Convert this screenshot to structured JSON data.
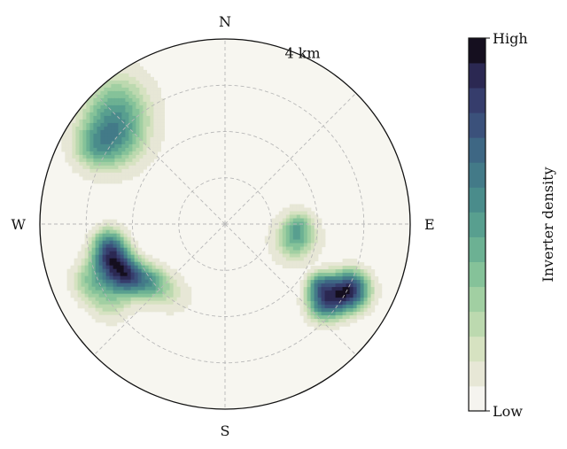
{
  "chart_data": {
    "type": "heatmap",
    "projection": "polar",
    "title": "",
    "compass": {
      "north": "N",
      "east": "E",
      "south": "S",
      "west": "W"
    },
    "radial_label": "4 km",
    "radial_max_km": 4,
    "radial_rings_km": [
      1,
      2,
      3,
      4
    ],
    "angular_grid_deg": [
      0,
      45,
      90,
      135,
      180,
      225,
      270,
      315
    ],
    "grid": true,
    "colorbar": {
      "label": "Inverter density",
      "high_label": "High",
      "low_label": "Low",
      "levels": 15,
      "colors": [
        "#f5f4ef",
        "#e7e7d6",
        "#d6e2c1",
        "#bcd9af",
        "#a1cfa2",
        "#85c299",
        "#6cb193",
        "#589f8f",
        "#4a8c8b",
        "#437a88",
        "#3e6784",
        "#3b517b",
        "#363d6c",
        "#2b2852",
        "#150f1f"
      ]
    },
    "background": "#f7f6f0",
    "hotspots": [
      {
        "name": "north-west",
        "bearing_deg": 315,
        "distance_km": 3.25,
        "peak_level": 9,
        "lobes": [
          {
            "bearing_deg": 318,
            "distance_km": 3.5,
            "spread_km": 0.55,
            "weight": 0.85
          },
          {
            "bearing_deg": 308,
            "distance_km": 3.0,
            "spread_km": 0.5,
            "weight": 0.95
          },
          {
            "bearing_deg": 300,
            "distance_km": 3.3,
            "spread_km": 0.35,
            "weight": 0.6
          }
        ]
      },
      {
        "name": "east",
        "bearing_deg": 98,
        "distance_km": 1.6,
        "peak_level": 7,
        "lobes": [
          {
            "bearing_deg": 103,
            "distance_km": 1.55,
            "spread_km": 0.32,
            "weight": 0.7
          },
          {
            "bearing_deg": 90,
            "distance_km": 1.6,
            "spread_km": 0.22,
            "weight": 0.4
          }
        ]
      },
      {
        "name": "south-east",
        "bearing_deg": 122,
        "distance_km": 2.9,
        "peak_level": 14,
        "lobes": [
          {
            "bearing_deg": 118,
            "distance_km": 3.05,
            "spread_km": 0.33,
            "weight": 1.0
          },
          {
            "bearing_deg": 129,
            "distance_km": 2.75,
            "spread_km": 0.3,
            "weight": 0.7
          },
          {
            "bearing_deg": 122,
            "distance_km": 2.4,
            "spread_km": 0.22,
            "weight": 0.45
          }
        ]
      },
      {
        "name": "south-west",
        "bearing_deg": 245,
        "distance_km": 2.7,
        "peak_level": 14,
        "lobes": [
          {
            "bearing_deg": 253,
            "distance_km": 2.55,
            "spread_km": 0.3,
            "weight": 1.0
          },
          {
            "bearing_deg": 242,
            "distance_km": 2.4,
            "spread_km": 0.28,
            "weight": 0.95
          },
          {
            "bearing_deg": 232,
            "distance_km": 2.05,
            "spread_km": 0.3,
            "weight": 0.7
          },
          {
            "bearing_deg": 215,
            "distance_km": 1.9,
            "spread_km": 0.35,
            "weight": 0.3
          },
          {
            "bearing_deg": 247,
            "distance_km": 3.15,
            "spread_km": 0.35,
            "weight": 0.55
          },
          {
            "bearing_deg": 235,
            "distance_km": 3.0,
            "spread_km": 0.35,
            "weight": 0.4
          },
          {
            "bearing_deg": 262,
            "distance_km": 2.55,
            "spread_km": 0.28,
            "weight": 0.6
          }
        ]
      }
    ]
  }
}
